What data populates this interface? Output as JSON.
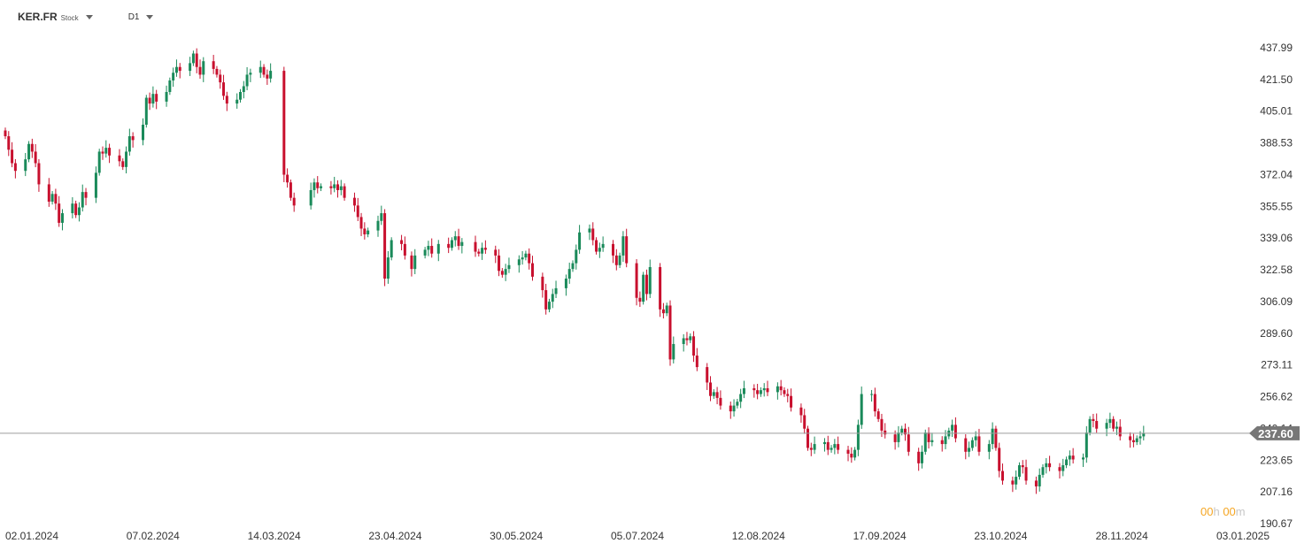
{
  "header": {
    "symbol": "KER.FR",
    "symbol_type": "Stock",
    "timeframe": "D1"
  },
  "timer": {
    "hours": "00",
    "h_unit": "h",
    "minutes": "00",
    "m_unit": "m"
  },
  "colors": {
    "up": "#1a8a5a",
    "down": "#c8102e",
    "price_line": "#9e9e9e",
    "price_tag": "#777777",
    "axis_text": "#333333",
    "timer": "#f5a623"
  },
  "chart_data": {
    "type": "candlestick",
    "y_ticks": [
      "437.99",
      "421.50",
      "405.01",
      "388.53",
      "372.04",
      "355.55",
      "339.06",
      "322.58",
      "306.09",
      "289.60",
      "273.11",
      "256.62",
      "240.14",
      "223.65",
      "207.16",
      "190.67"
    ],
    "ylim": [
      190.67,
      437.99
    ],
    "x_ticks": [
      "02.01.2024",
      "07.02.2024",
      "14.03.2024",
      "23.04.2024",
      "30.05.2024",
      "05.07.2024",
      "12.08.2024",
      "17.09.2024",
      "23.10.2024",
      "28.11.2024",
      "03.01.2025"
    ],
    "current_price": "237.60",
    "current_price_value": 237.6,
    "series": [
      {
        "date": "2024-01-02",
        "close": 392
      },
      {
        "date": "2024-01-03",
        "close": 385
      },
      {
        "date": "2024-01-04",
        "close": 378
      },
      {
        "date": "2024-01-05",
        "close": 374
      },
      {
        "date": "2024-01-08",
        "close": 380
      },
      {
        "date": "2024-01-09",
        "close": 388
      },
      {
        "date": "2024-01-10",
        "close": 384
      },
      {
        "date": "2024-01-11",
        "close": 378
      },
      {
        "date": "2024-01-12",
        "close": 367
      },
      {
        "date": "2024-01-15",
        "close": 358
      },
      {
        "date": "2024-01-16",
        "close": 362
      },
      {
        "date": "2024-01-17",
        "close": 357
      },
      {
        "date": "2024-01-18",
        "close": 347
      },
      {
        "date": "2024-01-19",
        "close": 352
      },
      {
        "date": "2024-01-22",
        "close": 357
      },
      {
        "date": "2024-01-23",
        "close": 351
      },
      {
        "date": "2024-01-24",
        "close": 355
      },
      {
        "date": "2024-01-25",
        "close": 363
      },
      {
        "date": "2024-01-26",
        "close": 360
      },
      {
        "date": "2024-01-29",
        "close": 373
      },
      {
        "date": "2024-01-30",
        "close": 384
      },
      {
        "date": "2024-01-31",
        "close": 383
      },
      {
        "date": "2024-02-01",
        "close": 386
      },
      {
        "date": "2024-02-02",
        "close": 382
      },
      {
        "date": "2024-02-05",
        "close": 379
      },
      {
        "date": "2024-02-06",
        "close": 376
      },
      {
        "date": "2024-02-07",
        "close": 384
      },
      {
        "date": "2024-02-08",
        "close": 392
      },
      {
        "date": "2024-02-09",
        "close": 390
      },
      {
        "date": "2024-02-12",
        "close": 398
      },
      {
        "date": "2024-02-13",
        "close": 412
      },
      {
        "date": "2024-02-14",
        "close": 409
      },
      {
        "date": "2024-02-15",
        "close": 414
      },
      {
        "date": "2024-02-16",
        "close": 410
      },
      {
        "date": "2024-02-19",
        "close": 415
      },
      {
        "date": "2024-02-20",
        "close": 421
      },
      {
        "date": "2024-02-21",
        "close": 425
      },
      {
        "date": "2024-02-22",
        "close": 428
      },
      {
        "date": "2024-02-23",
        "close": 426
      },
      {
        "date": "2024-02-26",
        "close": 430
      },
      {
        "date": "2024-02-27",
        "close": 435
      },
      {
        "date": "2024-02-28",
        "close": 428
      },
      {
        "date": "2024-02-29",
        "close": 424
      },
      {
        "date": "2024-03-01",
        "close": 431
      },
      {
        "date": "2024-03-04",
        "close": 427
      },
      {
        "date": "2024-03-05",
        "close": 424
      },
      {
        "date": "2024-03-06",
        "close": 420
      },
      {
        "date": "2024-03-07",
        "close": 413
      },
      {
        "date": "2024-03-08",
        "close": 409
      },
      {
        "date": "2024-03-11",
        "close": 411
      },
      {
        "date": "2024-03-12",
        "close": 415
      },
      {
        "date": "2024-03-13",
        "close": 418
      },
      {
        "date": "2024-03-14",
        "close": 424
      },
      {
        "date": "2024-03-15",
        "close": 425
      },
      {
        "date": "2024-03-18",
        "close": 428
      },
      {
        "date": "2024-03-19",
        "close": 424
      },
      {
        "date": "2024-03-20",
        "close": 422
      },
      {
        "date": "2024-03-21",
        "close": 426
      },
      {
        "date": "2024-03-25",
        "close": 372
      },
      {
        "date": "2024-03-26",
        "close": 368
      },
      {
        "date": "2024-03-27",
        "close": 360
      },
      {
        "date": "2024-03-28",
        "close": 356
      },
      {
        "date": "2024-04-02",
        "close": 364
      },
      {
        "date": "2024-04-03",
        "close": 368
      },
      {
        "date": "2024-04-04",
        "close": 365
      },
      {
        "date": "2024-04-05",
        "close": 366
      },
      {
        "date": "2024-04-08",
        "close": 365
      },
      {
        "date": "2024-04-09",
        "close": 367
      },
      {
        "date": "2024-04-10",
        "close": 364
      },
      {
        "date": "2024-04-11",
        "close": 366
      },
      {
        "date": "2024-04-12",
        "close": 360
      },
      {
        "date": "2024-04-15",
        "close": 356
      },
      {
        "date": "2024-04-16",
        "close": 350
      },
      {
        "date": "2024-04-17",
        "close": 344
      },
      {
        "date": "2024-04-18",
        "close": 341
      },
      {
        "date": "2024-04-19",
        "close": 343
      },
      {
        "date": "2024-04-22",
        "close": 348
      },
      {
        "date": "2024-04-23",
        "close": 352
      },
      {
        "date": "2024-04-24",
        "close": 318
      },
      {
        "date": "2024-04-25",
        "close": 329
      },
      {
        "date": "2024-04-26",
        "close": 338
      },
      {
        "date": "2024-04-29",
        "close": 336
      },
      {
        "date": "2024-04-30",
        "close": 330
      },
      {
        "date": "2024-05-02",
        "close": 323
      },
      {
        "date": "2024-05-03",
        "close": 330
      },
      {
        "date": "2024-05-06",
        "close": 333
      },
      {
        "date": "2024-05-07",
        "close": 335
      },
      {
        "date": "2024-05-08",
        "close": 331
      },
      {
        "date": "2024-05-10",
        "close": 336
      },
      {
        "date": "2024-05-13",
        "close": 334
      },
      {
        "date": "2024-05-14",
        "close": 338
      },
      {
        "date": "2024-05-15",
        "close": 340
      },
      {
        "date": "2024-05-16",
        "close": 335
      },
      {
        "date": "2024-05-17",
        "close": 337
      },
      {
        "date": "2024-05-21",
        "close": 332
      },
      {
        "date": "2024-05-22",
        "close": 331
      },
      {
        "date": "2024-05-23",
        "close": 334
      },
      {
        "date": "2024-05-24",
        "close": 333
      },
      {
        "date": "2024-05-27",
        "close": 330
      },
      {
        "date": "2024-05-28",
        "close": 322
      },
      {
        "date": "2024-05-29",
        "close": 320
      },
      {
        "date": "2024-05-30",
        "close": 323
      },
      {
        "date": "2024-05-31",
        "close": 325
      },
      {
        "date": "2024-06-03",
        "close": 328
      },
      {
        "date": "2024-06-04",
        "close": 329
      },
      {
        "date": "2024-06-05",
        "close": 331
      },
      {
        "date": "2024-06-06",
        "close": 326
      },
      {
        "date": "2024-06-07",
        "close": 319
      },
      {
        "date": "2024-06-10",
        "close": 312
      },
      {
        "date": "2024-06-11",
        "close": 302
      },
      {
        "date": "2024-06-12",
        "close": 306
      },
      {
        "date": "2024-06-13",
        "close": 310
      },
      {
        "date": "2024-06-14",
        "close": 313
      },
      {
        "date": "2024-06-17",
        "close": 318
      },
      {
        "date": "2024-06-18",
        "close": 323
      },
      {
        "date": "2024-06-19",
        "close": 326
      },
      {
        "date": "2024-06-20",
        "close": 333
      },
      {
        "date": "2024-06-21",
        "close": 342
      },
      {
        "date": "2024-06-24",
        "close": 344
      },
      {
        "date": "2024-06-25",
        "close": 338
      },
      {
        "date": "2024-06-26",
        "close": 332
      },
      {
        "date": "2024-06-27",
        "close": 334
      },
      {
        "date": "2024-06-28",
        "close": 336
      },
      {
        "date": "2024-07-01",
        "close": 330
      },
      {
        "date": "2024-07-02",
        "close": 325
      },
      {
        "date": "2024-07-03",
        "close": 330
      },
      {
        "date": "2024-07-04",
        "close": 340
      },
      {
        "date": "2024-07-05",
        "close": 326
      },
      {
        "date": "2024-07-08",
        "close": 308
      },
      {
        "date": "2024-07-09",
        "close": 306
      },
      {
        "date": "2024-07-10",
        "close": 320
      },
      {
        "date": "2024-07-11",
        "close": 310
      },
      {
        "date": "2024-07-12",
        "close": 324
      },
      {
        "date": "2024-07-15",
        "close": 302
      },
      {
        "date": "2024-07-16",
        "close": 300
      },
      {
        "date": "2024-07-17",
        "close": 304
      },
      {
        "date": "2024-07-18",
        "close": 276
      },
      {
        "date": "2024-07-19",
        "close": 284
      },
      {
        "date": "2024-07-22",
        "close": 287
      },
      {
        "date": "2024-07-23",
        "close": 286
      },
      {
        "date": "2024-07-24",
        "close": 288
      },
      {
        "date": "2024-07-25",
        "close": 278
      },
      {
        "date": "2024-07-26",
        "close": 272
      },
      {
        "date": "2024-07-29",
        "close": 264
      },
      {
        "date": "2024-07-30",
        "close": 257
      },
      {
        "date": "2024-07-31",
        "close": 259
      },
      {
        "date": "2024-08-01",
        "close": 256
      },
      {
        "date": "2024-08-02",
        "close": 252
      },
      {
        "date": "2024-08-05",
        "close": 249
      },
      {
        "date": "2024-08-06",
        "close": 252
      },
      {
        "date": "2024-08-07",
        "close": 254
      },
      {
        "date": "2024-08-08",
        "close": 258
      },
      {
        "date": "2024-08-09",
        "close": 261
      },
      {
        "date": "2024-08-12",
        "close": 260
      },
      {
        "date": "2024-08-13",
        "close": 258
      },
      {
        "date": "2024-08-14",
        "close": 260
      },
      {
        "date": "2024-08-15",
        "close": 261
      },
      {
        "date": "2024-08-16",
        "close": 259
      },
      {
        "date": "2024-08-19",
        "close": 262
      },
      {
        "date": "2024-08-20",
        "close": 260
      },
      {
        "date": "2024-08-21",
        "close": 258
      },
      {
        "date": "2024-08-22",
        "close": 257
      },
      {
        "date": "2024-08-23",
        "close": 251
      },
      {
        "date": "2024-08-26",
        "close": 247
      },
      {
        "date": "2024-08-27",
        "close": 240
      },
      {
        "date": "2024-08-28",
        "close": 230
      },
      {
        "date": "2024-08-29",
        "close": 229
      },
      {
        "date": "2024-08-30",
        "close": 232
      },
      {
        "date": "2024-09-02",
        "close": 233
      },
      {
        "date": "2024-09-03",
        "close": 229
      },
      {
        "date": "2024-09-04",
        "close": 230
      },
      {
        "date": "2024-09-05",
        "close": 232
      },
      {
        "date": "2024-09-06",
        "close": 229
      },
      {
        "date": "2024-09-09",
        "close": 227
      },
      {
        "date": "2024-09-10",
        "close": 225
      },
      {
        "date": "2024-09-11",
        "close": 229
      },
      {
        "date": "2024-09-12",
        "close": 242
      },
      {
        "date": "2024-09-13",
        "close": 258
      },
      {
        "date": "2024-09-16",
        "close": 258
      },
      {
        "date": "2024-09-17",
        "close": 249
      },
      {
        "date": "2024-09-18",
        "close": 245
      },
      {
        "date": "2024-09-19",
        "close": 239
      },
      {
        "date": "2024-09-20",
        "close": 237
      },
      {
        "date": "2024-09-23",
        "close": 233
      },
      {
        "date": "2024-09-24",
        "close": 238
      },
      {
        "date": "2024-09-25",
        "close": 240
      },
      {
        "date": "2024-09-26",
        "close": 237
      },
      {
        "date": "2024-09-27",
        "close": 228
      },
      {
        "date": "2024-09-30",
        "close": 222
      },
      {
        "date": "2024-10-01",
        "close": 228
      },
      {
        "date": "2024-10-02",
        "close": 238
      },
      {
        "date": "2024-10-03",
        "close": 233
      },
      {
        "date": "2024-10-04",
        "close": 234
      },
      {
        "date": "2024-10-07",
        "close": 232
      },
      {
        "date": "2024-10-08",
        "close": 236
      },
      {
        "date": "2024-10-09",
        "close": 239
      },
      {
        "date": "2024-10-10",
        "close": 242
      },
      {
        "date": "2024-10-11",
        "close": 235
      },
      {
        "date": "2024-10-14",
        "close": 228
      },
      {
        "date": "2024-10-15",
        "close": 230
      },
      {
        "date": "2024-10-16",
        "close": 234
      },
      {
        "date": "2024-10-17",
        "close": 236
      },
      {
        "date": "2024-10-18",
        "close": 228
      },
      {
        "date": "2024-10-21",
        "close": 232
      },
      {
        "date": "2024-10-22",
        "close": 240
      },
      {
        "date": "2024-10-23",
        "close": 230
      },
      {
        "date": "2024-10-24",
        "close": 218
      },
      {
        "date": "2024-10-25",
        "close": 213
      },
      {
        "date": "2024-10-28",
        "close": 211
      },
      {
        "date": "2024-10-29",
        "close": 215
      },
      {
        "date": "2024-10-30",
        "close": 221
      },
      {
        "date": "2024-10-31",
        "close": 220
      },
      {
        "date": "2024-11-01",
        "close": 213
      },
      {
        "date": "2024-11-04",
        "close": 210
      },
      {
        "date": "2024-11-05",
        "close": 216
      },
      {
        "date": "2024-11-06",
        "close": 220
      },
      {
        "date": "2024-11-07",
        "close": 222
      },
      {
        "date": "2024-11-08",
        "close": 220
      },
      {
        "date": "2024-11-11",
        "close": 218
      },
      {
        "date": "2024-11-12",
        "close": 221
      },
      {
        "date": "2024-11-13",
        "close": 224
      },
      {
        "date": "2024-11-14",
        "close": 226
      },
      {
        "date": "2024-11-15",
        "close": 224
      },
      {
        "date": "2024-11-18",
        "close": 225
      },
      {
        "date": "2024-11-19",
        "close": 238
      },
      {
        "date": "2024-11-20",
        "close": 245
      },
      {
        "date": "2024-11-21",
        "close": 244
      },
      {
        "date": "2024-11-22",
        "close": 240
      },
      {
        "date": "2024-11-25",
        "close": 243
      },
      {
        "date": "2024-11-26",
        "close": 245
      },
      {
        "date": "2024-11-27",
        "close": 240
      },
      {
        "date": "2024-11-28",
        "close": 241
      },
      {
        "date": "2024-11-29",
        "close": 236
      },
      {
        "date": "2024-12-02",
        "close": 234
      },
      {
        "date": "2024-12-03",
        "close": 233
      },
      {
        "date": "2024-12-04",
        "close": 235
      },
      {
        "date": "2024-12-05",
        "close": 236
      },
      {
        "date": "2024-12-06",
        "close": 237.6
      }
    ]
  }
}
